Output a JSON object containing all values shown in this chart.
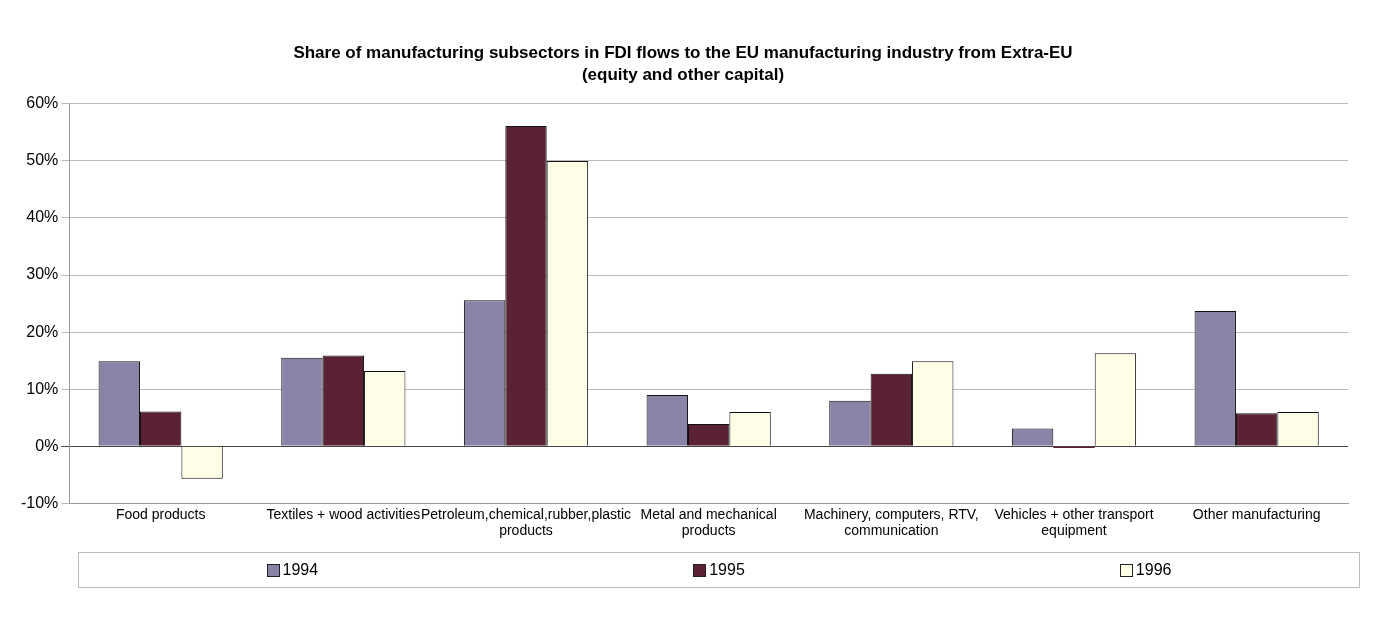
{
  "chart_data": {
    "type": "bar",
    "title": "Share of manufacturing subsectors in FDI flows to the EU manufacturing industry from Extra-EU",
    "subtitle": "(equity and other capital)",
    "categories": [
      "Food products",
      "Textiles + wood activities",
      "Petroleum,chemical,rubber,plastic products",
      "Metal and mechanical products",
      "Machinery, computers, RTV, communication",
      "Vehicles + other transport equipment",
      "Other manufacturing"
    ],
    "series": [
      {
        "name": "1994",
        "color": "#8b82a8",
        "values": [
          14.9,
          15.5,
          25.6,
          9.0,
          8.0,
          3.1,
          23.7
        ]
      },
      {
        "name": "1995",
        "color": "#5a2234",
        "values": [
          6.1,
          15.9,
          56.1,
          3.9,
          12.7,
          -0.3,
          5.8
        ]
      },
      {
        "name": "1996",
        "color": "#fefee8",
        "values": [
          -5.7,
          13.2,
          50.0,
          6.0,
          14.9,
          16.3,
          6.0
        ]
      }
    ],
    "ylim": [
      -10,
      60
    ],
    "yticks": [
      {
        "value": -10,
        "label": "-10%"
      },
      {
        "value": 0,
        "label": "0%"
      },
      {
        "value": 10,
        "label": "10%"
      },
      {
        "value": 20,
        "label": "20%"
      },
      {
        "value": 30,
        "label": "30%"
      },
      {
        "value": 40,
        "label": "40%"
      },
      {
        "value": 50,
        "label": "50%"
      },
      {
        "value": 60,
        "label": "60%"
      }
    ],
    "grid": "y",
    "legend": "bottom"
  }
}
